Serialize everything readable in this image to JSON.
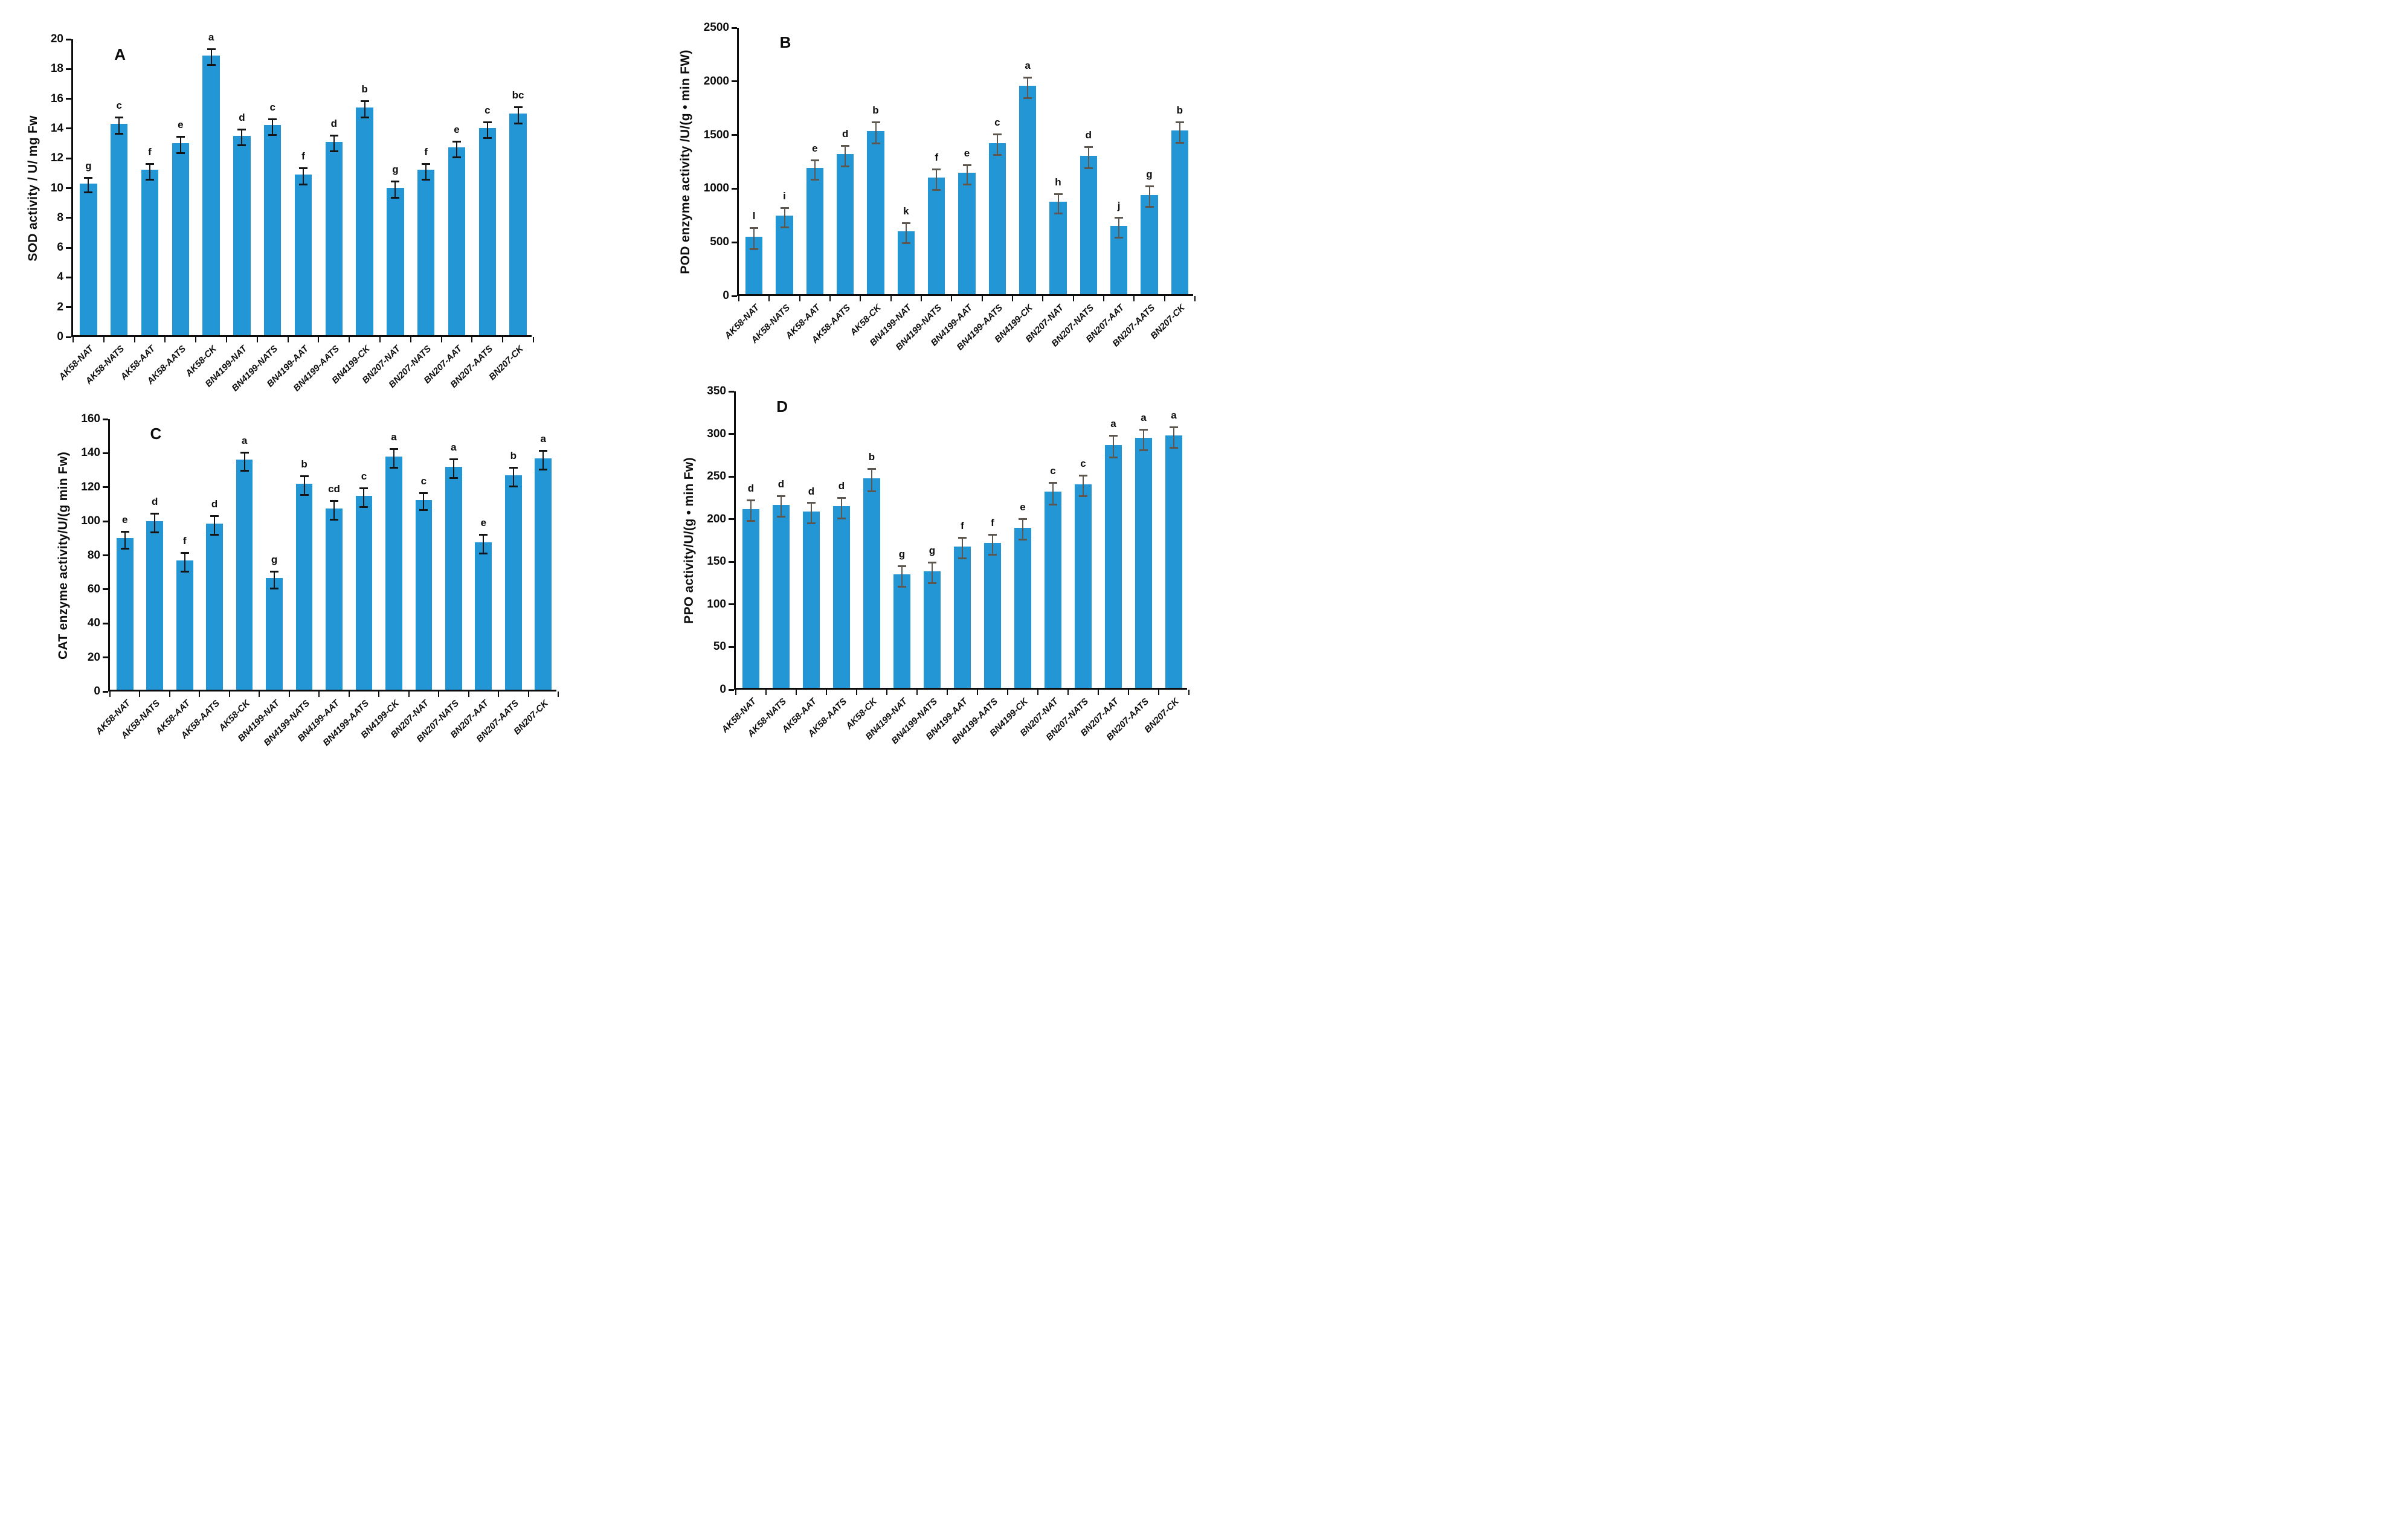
{
  "figure_background": "#ffffff",
  "style": {
    "bar_color": "#2397d6"
  },
  "categories": [
    "AK58-NAT",
    "AK58-NATS",
    "AK58-AAT",
    "AK58-AATS",
    "AK58-CK",
    "BN4199-NAT",
    "BN4199-NATS",
    "BN4199-AAT",
    "BN4199-AATS",
    "BN4199-CK",
    "BN207-NAT",
    "BN207-NATS",
    "BN207-AAT",
    "BN207-AATS",
    "BN207-CK"
  ],
  "chart_data": [
    {
      "type": "bar",
      "panel_letter": "A",
      "ylabel": "SOD activity / U/ mg Fw",
      "xlabel": "",
      "ylim": [
        0,
        20
      ],
      "ystep": 2,
      "grid": false,
      "legend": "none",
      "error_color": "#141414",
      "values": [
        10.2,
        14.2,
        11.1,
        12.9,
        18.8,
        13.4,
        14.1,
        10.8,
        13.0,
        15.3,
        9.9,
        11.1,
        12.6,
        13.9,
        14.9
      ],
      "errors": [
        0.55,
        0.6,
        0.6,
        0.6,
        0.6,
        0.6,
        0.6,
        0.6,
        0.6,
        0.6,
        0.6,
        0.6,
        0.6,
        0.6,
        0.6
      ],
      "sig_letters": [
        "g",
        "c",
        "f",
        "e",
        "a",
        "d",
        "c",
        "f",
        "d",
        "b",
        "g",
        "f",
        "e",
        "c",
        "bc"
      ]
    },
    {
      "type": "bar",
      "panel_letter": "B",
      "ylabel": "POD enzyme activity /U/(g • min FW)",
      "xlabel": "",
      "ylim": [
        0,
        2500
      ],
      "ystep": 500,
      "grid": false,
      "legend": "none",
      "error_color": "#5d574f",
      "values": [
        535,
        730,
        1175,
        1305,
        1520,
        585,
        1085,
        1130,
        1410,
        1940,
        860,
        1290,
        635,
        925,
        1525
      ],
      "errors": [
        105,
        100,
        100,
        105,
        105,
        100,
        105,
        100,
        105,
        105,
        100,
        105,
        100,
        105,
        105
      ],
      "sig_letters": [
        "l",
        "i",
        "e",
        "d",
        "b",
        "k",
        "f",
        "e",
        "c",
        "a",
        "h",
        "d",
        "j",
        "g",
        "b"
      ]
    },
    {
      "type": "bar",
      "panel_letter": "C",
      "ylabel": "CAT enzyme activity/U/(g min Fw)",
      "xlabel": "",
      "ylim": [
        0,
        160
      ],
      "ystep": 20,
      "grid": false,
      "legend": "none",
      "error_color": "#141414",
      "values": [
        89,
        99,
        76,
        97.5,
        135,
        65.5,
        121,
        106.5,
        114,
        137,
        111.5,
        131,
        86.5,
        126,
        136
      ],
      "errors": [
        5.5,
        6,
        6,
        6,
        6,
        5.5,
        6,
        6,
        6,
        6,
        5.5,
        6,
        6,
        6,
        6
      ],
      "sig_letters": [
        "e",
        "d",
        "f",
        "d",
        "a",
        "g",
        "b",
        "cd",
        "c",
        "a",
        "c",
        "a",
        "e",
        "b",
        "a"
      ]
    },
    {
      "type": "bar",
      "panel_letter": "D",
      "ylabel": "PPO activity/U/(g • min Fw)",
      "xlabel": "",
      "ylim": [
        0,
        350
      ],
      "ystep": 50,
      "grid": false,
      "legend": "none",
      "error_color": "#5d574f",
      "values": [
        210,
        215,
        207,
        213,
        246,
        133,
        137,
        166,
        170,
        188,
        230,
        239,
        285,
        293,
        296
      ],
      "errors": [
        13,
        13,
        13,
        13,
        14,
        13,
        13,
        13,
        13,
        13,
        14,
        13,
        14,
        13,
        13
      ],
      "sig_letters": [
        "d",
        "d",
        "d",
        "d",
        "b",
        "g",
        "g",
        "f",
        "f",
        "e",
        "c",
        "c",
        "a",
        "a",
        "a"
      ]
    }
  ]
}
